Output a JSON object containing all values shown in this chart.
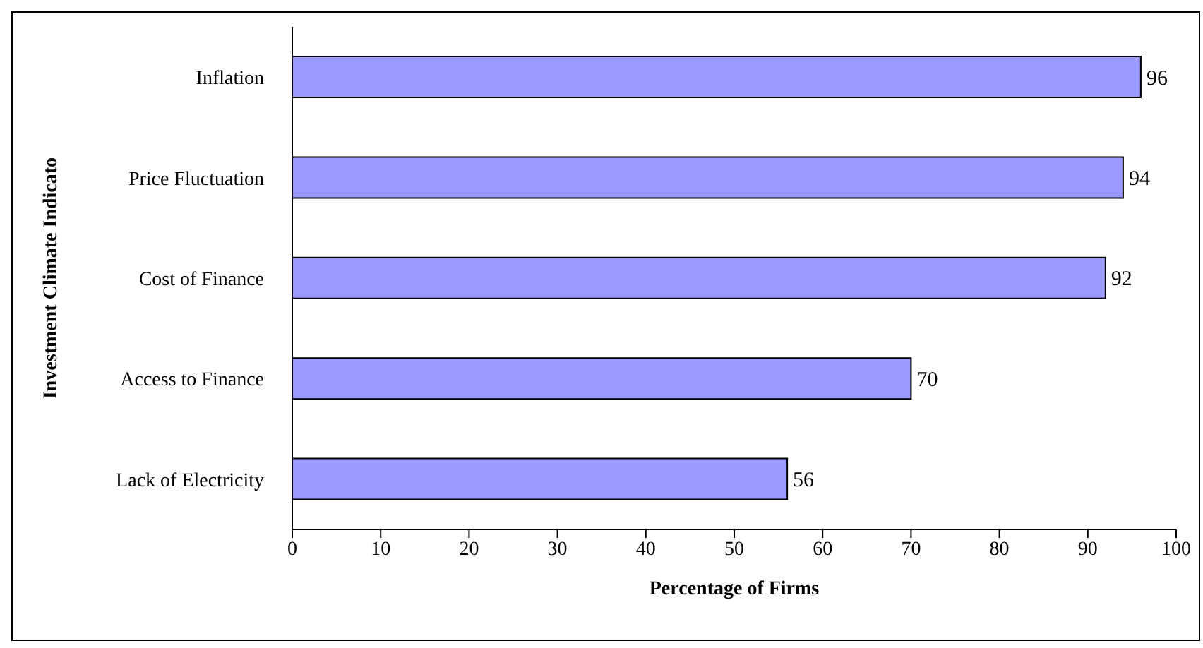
{
  "chart_data": {
    "type": "bar",
    "orientation": "horizontal",
    "xlabel": "Percentage of Firms",
    "ylabel": "Investment Climate Indicato",
    "categories": [
      "Inflation",
      "Price Fluctuation",
      "Cost of Finance",
      "Access to Finance",
      "Lack of Electricity"
    ],
    "values": [
      96,
      94,
      92,
      70,
      56
    ],
    "color": "#9999ff",
    "xlim": [
      0,
      100
    ],
    "xticks": [
      0,
      10,
      20,
      30,
      40,
      50,
      60,
      70,
      80,
      90,
      100
    ],
    "grid": false,
    "data_labels": true
  }
}
